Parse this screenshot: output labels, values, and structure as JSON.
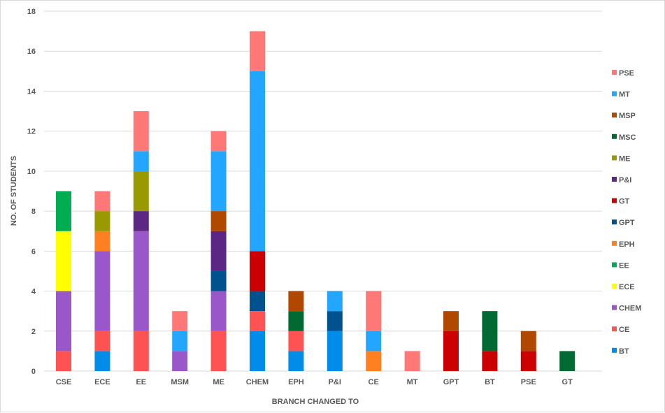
{
  "chart_data": {
    "type": "bar",
    "stacked": true,
    "title": "",
    "xlabel": "BRANCH CHANGED TO",
    "ylabel": "NO. OF STUDENTS",
    "ylim": [
      0,
      18
    ],
    "yticks": [
      "0",
      "2",
      "4",
      "6",
      "8",
      "10",
      "12",
      "14",
      "16",
      "18"
    ],
    "grid": true,
    "legend_position": "right",
    "categories": [
      "CSE",
      "ECE",
      "EE",
      "MSM",
      "ME",
      "CHEM",
      "EPH",
      "P&I",
      "CE",
      "MT",
      "GPT",
      "BT",
      "PSE",
      "GT"
    ],
    "series": [
      {
        "name": "BT",
        "color": "#008ce8",
        "values": [
          0,
          1,
          0,
          0,
          0,
          2,
          1,
          2,
          0,
          0,
          0,
          0,
          0,
          0
        ]
      },
      {
        "name": "CE",
        "color": "#ff5353",
        "values": [
          1,
          1,
          2,
          0,
          2,
          1,
          1,
          0,
          0,
          0,
          0,
          0,
          0,
          0
        ]
      },
      {
        "name": "CHEM",
        "color": "#9957c9",
        "values": [
          3,
          4,
          5,
          1,
          2,
          0,
          0,
          0,
          0,
          0,
          0,
          0,
          0,
          0
        ]
      },
      {
        "name": "ECE",
        "color": "#ffff00",
        "values": [
          3,
          0,
          0,
          0,
          0,
          0,
          0,
          0,
          0,
          0,
          0,
          0,
          0,
          0
        ]
      },
      {
        "name": "EE",
        "color": "#00ad50",
        "values": [
          2,
          0,
          0,
          0,
          0,
          0,
          0,
          0,
          0,
          0,
          0,
          0,
          0,
          0
        ]
      },
      {
        "name": "EPH",
        "color": "#ff8020",
        "values": [
          0,
          1,
          0,
          0,
          0,
          0,
          0,
          0,
          1,
          0,
          0,
          0,
          0,
          0
        ]
      },
      {
        "name": "GPT",
        "color": "#00528e",
        "values": [
          0,
          0,
          0,
          0,
          1,
          1,
          0,
          1,
          0,
          0,
          0,
          0,
          0,
          0
        ]
      },
      {
        "name": "GT",
        "color": "#cc0000",
        "values": [
          0,
          0,
          0,
          0,
          0,
          2,
          0,
          0,
          0,
          0,
          2,
          1,
          1,
          0
        ]
      },
      {
        "name": "P&I",
        "color": "#5c2684",
        "values": [
          0,
          0,
          1,
          0,
          2,
          0,
          0,
          0,
          0,
          0,
          0,
          0,
          0,
          0
        ]
      },
      {
        "name": "ME",
        "color": "#999900",
        "values": [
          0,
          1,
          2,
          0,
          0,
          0,
          0,
          0,
          0,
          0,
          0,
          0,
          0,
          0
        ]
      },
      {
        "name": "MSC",
        "color": "#006a33",
        "values": [
          0,
          0,
          0,
          0,
          0,
          0,
          1,
          0,
          0,
          0,
          0,
          2,
          0,
          1
        ]
      },
      {
        "name": "MSP",
        "color": "#b04800",
        "values": [
          0,
          0,
          0,
          0,
          1,
          0,
          1,
          0,
          0,
          0,
          1,
          0,
          1,
          0
        ]
      },
      {
        "name": "MT",
        "color": "#22a6ff",
        "values": [
          0,
          0,
          1,
          1,
          3,
          9,
          0,
          1,
          1,
          0,
          0,
          0,
          0,
          0
        ]
      },
      {
        "name": "PSE",
        "color": "#ff7878",
        "values": [
          0,
          1,
          2,
          1,
          1,
          2,
          0,
          0,
          2,
          1,
          0,
          0,
          0,
          0
        ]
      }
    ]
  }
}
